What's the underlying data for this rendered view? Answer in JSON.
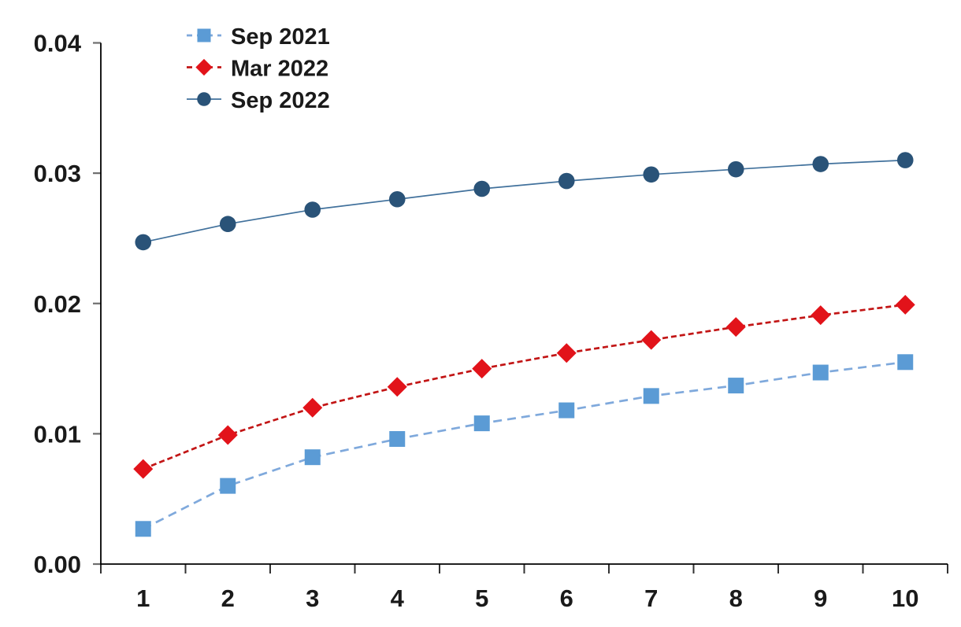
{
  "chart_data": {
    "type": "line",
    "title": "",
    "xlabel": "",
    "ylabel": "",
    "categories": [
      "1",
      "2",
      "3",
      "4",
      "5",
      "6",
      "7",
      "8",
      "9",
      "10"
    ],
    "x_tick_labels": [
      "1",
      "2",
      "3",
      "4",
      "5",
      "6",
      "7",
      "8",
      "9",
      "10"
    ],
    "y_ticks": [
      "0.00",
      "0.01",
      "0.02",
      "0.03",
      "0.04"
    ],
    "ylim": [
      0,
      0.04
    ],
    "grid": false,
    "legend_position": "top-left",
    "axis_color": "#000000",
    "y_tick_color": "#6e6e6e",
    "x_tick_color": "#333333",
    "text_color": "#1a1a1a",
    "series": [
      {
        "name": "Sep 2021",
        "marker": "square",
        "line_style": "dashed",
        "dash": "11 7",
        "color": "#5B9BD5",
        "line_color": "#7FA9DC",
        "values": [
          0.0027,
          0.006,
          0.0082,
          0.0096,
          0.0108,
          0.0118,
          0.0129,
          0.0137,
          0.0147,
          0.0155
        ]
      },
      {
        "name": "Mar 2022",
        "marker": "diamond",
        "line_style": "dashed",
        "dash": "7 4",
        "color": "#E2131A",
        "line_color": "#C21515",
        "values": [
          0.0073,
          0.0099,
          0.012,
          0.0136,
          0.015,
          0.0162,
          0.0172,
          0.0182,
          0.0191,
          0.0199
        ]
      },
      {
        "name": "Sep 2022",
        "marker": "circle",
        "line_style": "solid",
        "dash": "",
        "color": "#2A5378",
        "line_color": "#41719C",
        "values": [
          0.0247,
          0.0261,
          0.0272,
          0.028,
          0.0288,
          0.0294,
          0.0299,
          0.0303,
          0.0307,
          0.031
        ]
      }
    ]
  }
}
